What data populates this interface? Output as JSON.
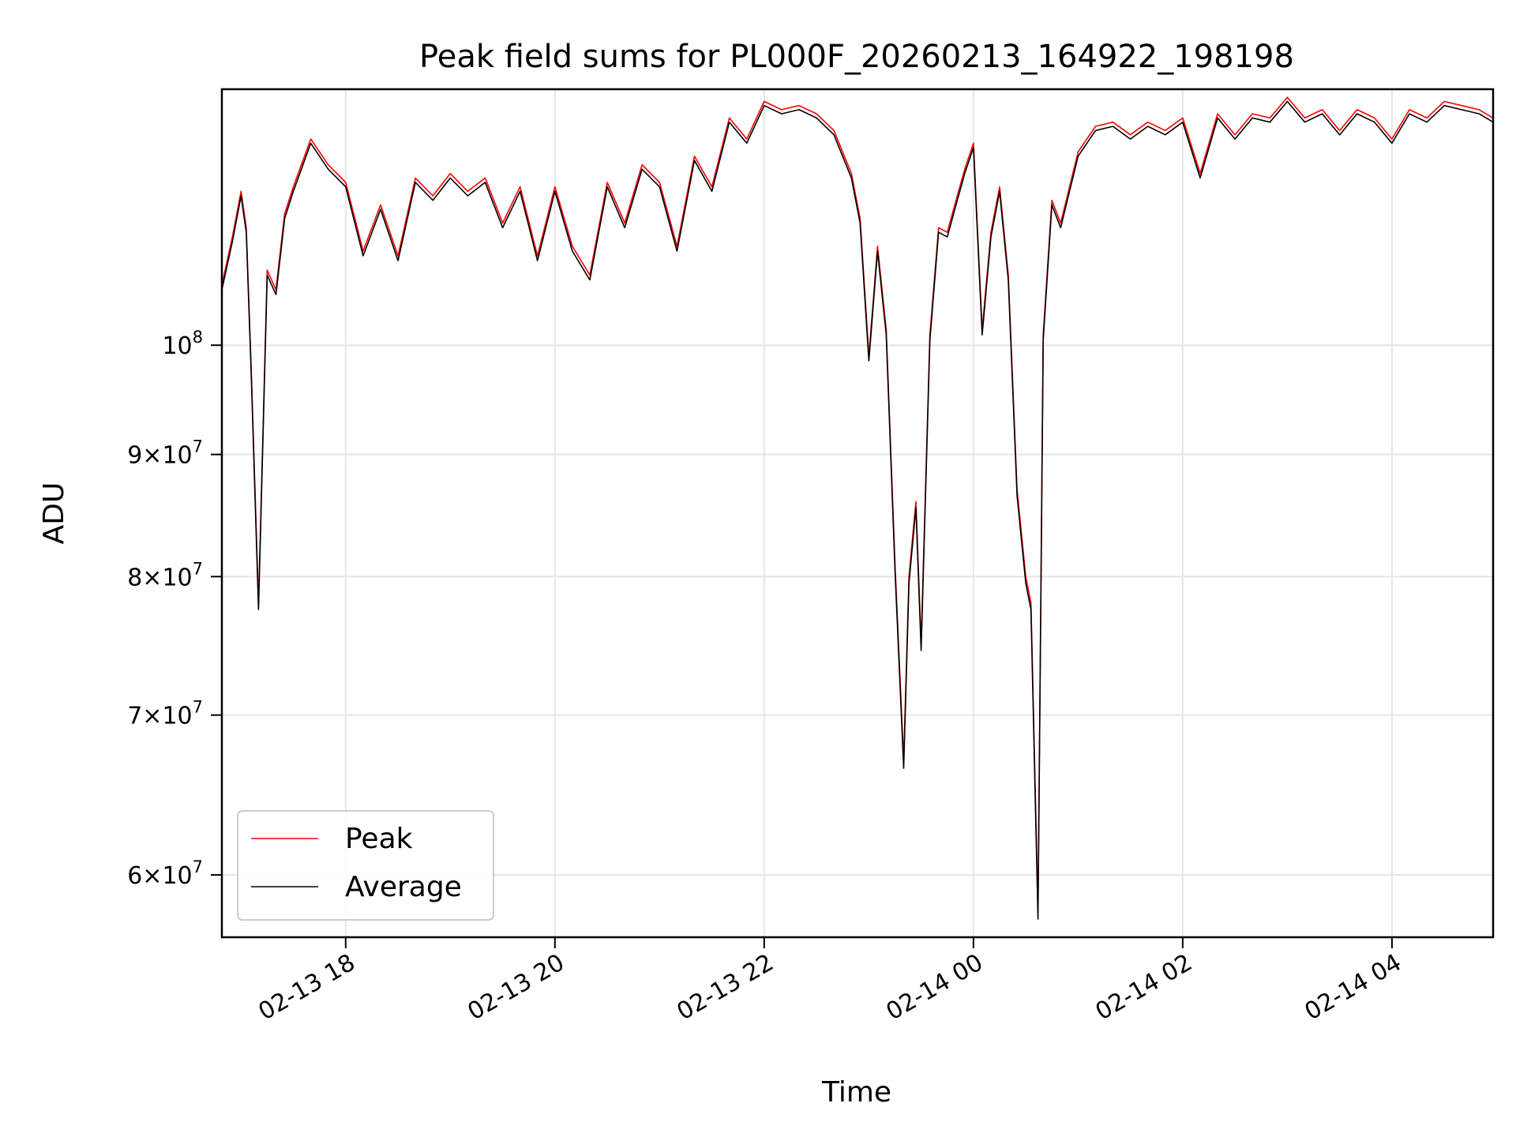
{
  "chart_data": {
    "type": "line",
    "title": "Peak field sums for PL000F_20260213_164922_198198",
    "xlabel": "Time",
    "ylabel": "ADU",
    "xlim": [
      "2026-02-13 16:49",
      "2026-02-14 04:58"
    ],
    "ylim": [
      56500000,
      128000000
    ],
    "yscale": "log",
    "grid": true,
    "legend_position": "lower left",
    "x_ticks": [
      "2026-02-13 18:00",
      "2026-02-13 20:00",
      "2026-02-13 22:00",
      "2026-02-14 00:00",
      "2026-02-14 02:00",
      "2026-02-14 04:00"
    ],
    "x_tick_labels": [
      "02-13 18",
      "02-13 20",
      "02-13 22",
      "02-14 00",
      "02-14 02",
      "02-14 04"
    ],
    "y_ticks": [
      {
        "value": 60000000,
        "mantissa": "6",
        "exponent": "7"
      },
      {
        "value": 70000000,
        "mantissa": "7",
        "exponent": "7"
      },
      {
        "value": 80000000,
        "mantissa": "8",
        "exponent": "7"
      },
      {
        "value": 90000000,
        "mantissa": "9",
        "exponent": "7"
      },
      {
        "value": 100000000,
        "mantissa": "",
        "exponent": "8"
      }
    ],
    "series": [
      {
        "name": "Peak",
        "color": "#ff0000",
        "x": [
          "2026-02-13 16:49",
          "2026-02-13 16:55",
          "2026-02-13 17:00",
          "2026-02-13 17:03",
          "2026-02-13 17:06",
          "2026-02-13 17:10",
          "2026-02-13 17:15",
          "2026-02-13 17:20",
          "2026-02-13 17:25",
          "2026-02-13 17:30",
          "2026-02-13 17:40",
          "2026-02-13 17:50",
          "2026-02-13 18:00",
          "2026-02-13 18:10",
          "2026-02-13 18:20",
          "2026-02-13 18:30",
          "2026-02-13 18:40",
          "2026-02-13 18:50",
          "2026-02-13 19:00",
          "2026-02-13 19:10",
          "2026-02-13 19:20",
          "2026-02-13 19:30",
          "2026-02-13 19:40",
          "2026-02-13 19:50",
          "2026-02-13 20:00",
          "2026-02-13 20:10",
          "2026-02-13 20:20",
          "2026-02-13 20:30",
          "2026-02-13 20:40",
          "2026-02-13 20:50",
          "2026-02-13 21:00",
          "2026-02-13 21:10",
          "2026-02-13 21:20",
          "2026-02-13 21:30",
          "2026-02-13 21:40",
          "2026-02-13 21:50",
          "2026-02-13 22:00",
          "2026-02-13 22:10",
          "2026-02-13 22:20",
          "2026-02-13 22:30",
          "2026-02-13 22:40",
          "2026-02-13 22:50",
          "2026-02-13 22:55",
          "2026-02-13 23:00",
          "2026-02-13 23:05",
          "2026-02-13 23:10",
          "2026-02-13 23:15",
          "2026-02-13 23:20",
          "2026-02-13 23:23",
          "2026-02-13 23:27",
          "2026-02-13 23:30",
          "2026-02-13 23:35",
          "2026-02-13 23:40",
          "2026-02-13 23:45",
          "2026-02-13 23:50",
          "2026-02-13 23:55",
          "2026-02-14 00:00",
          "2026-02-14 00:05",
          "2026-02-14 00:10",
          "2026-02-14 00:15",
          "2026-02-14 00:20",
          "2026-02-14 00:25",
          "2026-02-14 00:30",
          "2026-02-14 00:33",
          "2026-02-14 00:37",
          "2026-02-14 00:40",
          "2026-02-14 00:45",
          "2026-02-14 00:50",
          "2026-02-14 01:00",
          "2026-02-14 01:10",
          "2026-02-14 01:20",
          "2026-02-14 01:30",
          "2026-02-14 01:40",
          "2026-02-14 01:50",
          "2026-02-14 02:00",
          "2026-02-14 02:10",
          "2026-02-14 02:20",
          "2026-02-14 02:30",
          "2026-02-14 02:40",
          "2026-02-14 02:50",
          "2026-02-14 03:00",
          "2026-02-14 03:10",
          "2026-02-14 03:20",
          "2026-02-14 03:30",
          "2026-02-14 03:40",
          "2026-02-14 03:50",
          "2026-02-14 04:00",
          "2026-02-14 04:10",
          "2026-02-14 04:20",
          "2026-02-14 04:30",
          "2026-02-14 04:40",
          "2026-02-14 04:50",
          "2026-02-14 04:58"
        ],
        "y": [
          106000000,
          111000000,
          116000000,
          112000000,
          97000000,
          78000000,
          107500000,
          105500000,
          113500000,
          116500000,
          122000000,
          119000000,
          117000000,
          109500000,
          114500000,
          109000000,
          117500000,
          115500000,
          118000000,
          116000000,
          117500000,
          112500000,
          116500000,
          109000000,
          116500000,
          110000000,
          107000000,
          117000000,
          112500000,
          119000000,
          117000000,
          110000000,
          120000000,
          116500000,
          124500000,
          122000000,
          126500000,
          125500000,
          126000000,
          125000000,
          123000000,
          118000000,
          113000000,
          99000000,
          110000000,
          101500000,
          81000000,
          67000000,
          80000000,
          86000000,
          75000000,
          101000000,
          112000000,
          111500000,
          115000000,
          118500000,
          121500000,
          101500000,
          111500000,
          116500000,
          107000000,
          87000000,
          80000000,
          78000000,
          58000000,
          101000000,
          115000000,
          112500000,
          120500000,
          123500000,
          124000000,
          122500000,
          124000000,
          123000000,
          124500000,
          118000000,
          125000000,
          122500000,
          125000000,
          124500000,
          127000000,
          124500000,
          125500000,
          123000000,
          125500000,
          124500000,
          122000000,
          125500000,
          124500000,
          126500000,
          126000000,
          125500000,
          124500000
        ]
      },
      {
        "name": "Average",
        "color": "#000000",
        "x": [
          "2026-02-13 16:49",
          "2026-02-13 16:55",
          "2026-02-13 17:00",
          "2026-02-13 17:03",
          "2026-02-13 17:06",
          "2026-02-13 17:10",
          "2026-02-13 17:15",
          "2026-02-13 17:20",
          "2026-02-13 17:25",
          "2026-02-13 17:30",
          "2026-02-13 17:40",
          "2026-02-13 17:50",
          "2026-02-13 18:00",
          "2026-02-13 18:10",
          "2026-02-13 18:20",
          "2026-02-13 18:30",
          "2026-02-13 18:40",
          "2026-02-13 18:50",
          "2026-02-13 19:00",
          "2026-02-13 19:10",
          "2026-02-13 19:20",
          "2026-02-13 19:30",
          "2026-02-13 19:40",
          "2026-02-13 19:50",
          "2026-02-13 20:00",
          "2026-02-13 20:10",
          "2026-02-13 20:20",
          "2026-02-13 20:30",
          "2026-02-13 20:40",
          "2026-02-13 20:50",
          "2026-02-13 21:00",
          "2026-02-13 21:10",
          "2026-02-13 21:20",
          "2026-02-13 21:30",
          "2026-02-13 21:40",
          "2026-02-13 21:50",
          "2026-02-13 22:00",
          "2026-02-13 22:10",
          "2026-02-13 22:20",
          "2026-02-13 22:30",
          "2026-02-13 22:40",
          "2026-02-13 22:50",
          "2026-02-13 22:55",
          "2026-02-13 23:00",
          "2026-02-13 23:05",
          "2026-02-13 23:10",
          "2026-02-13 23:15",
          "2026-02-13 23:20",
          "2026-02-13 23:23",
          "2026-02-13 23:27",
          "2026-02-13 23:30",
          "2026-02-13 23:35",
          "2026-02-13 23:40",
          "2026-02-13 23:45",
          "2026-02-13 23:50",
          "2026-02-13 23:55",
          "2026-02-14 00:00",
          "2026-02-14 00:05",
          "2026-02-14 00:10",
          "2026-02-14 00:15",
          "2026-02-14 00:20",
          "2026-02-14 00:25",
          "2026-02-14 00:30",
          "2026-02-14 00:33",
          "2026-02-14 00:37",
          "2026-02-14 00:40",
          "2026-02-14 00:45",
          "2026-02-14 00:50",
          "2026-02-14 01:00",
          "2026-02-14 01:10",
          "2026-02-14 01:20",
          "2026-02-14 01:30",
          "2026-02-14 01:40",
          "2026-02-14 01:50",
          "2026-02-14 02:00",
          "2026-02-14 02:10",
          "2026-02-14 02:20",
          "2026-02-14 02:30",
          "2026-02-14 02:40",
          "2026-02-14 02:50",
          "2026-02-14 03:00",
          "2026-02-14 03:10",
          "2026-02-14 03:20",
          "2026-02-14 03:30",
          "2026-02-14 03:40",
          "2026-02-14 03:50",
          "2026-02-14 04:00",
          "2026-02-14 04:10",
          "2026-02-14 04:20",
          "2026-02-14 04:30",
          "2026-02-14 04:40",
          "2026-02-14 04:50",
          "2026-02-14 04:58"
        ],
        "y": [
          105500000,
          110500000,
          115500000,
          111500000,
          96500000,
          77500000,
          107000000,
          105000000,
          113000000,
          116000000,
          121500000,
          118500000,
          116500000,
          109000000,
          114000000,
          108500000,
          117000000,
          115000000,
          117500000,
          115500000,
          117000000,
          112000000,
          116000000,
          108500000,
          116000000,
          109500000,
          106500000,
          116500000,
          112000000,
          118500000,
          116500000,
          109500000,
          119500000,
          116000000,
          124000000,
          121500000,
          126000000,
          125000000,
          125500000,
          124500000,
          122500000,
          117500000,
          112500000,
          98500000,
          109500000,
          101000000,
          80500000,
          66500000,
          79500000,
          85500000,
          74500000,
          100500000,
          111500000,
          111000000,
          114500000,
          118000000,
          121000000,
          101000000,
          111000000,
          116000000,
          106500000,
          86500000,
          79500000,
          77500000,
          57500000,
          100500000,
          114500000,
          112000000,
          120000000,
          123000000,
          123500000,
          122000000,
          123500000,
          122500000,
          124000000,
          117500000,
          124500000,
          122000000,
          124500000,
          124000000,
          126500000,
          124000000,
          125000000,
          122500000,
          125000000,
          124000000,
          121500000,
          125000000,
          124000000,
          126000000,
          125500000,
          125000000,
          124000000
        ]
      }
    ]
  }
}
